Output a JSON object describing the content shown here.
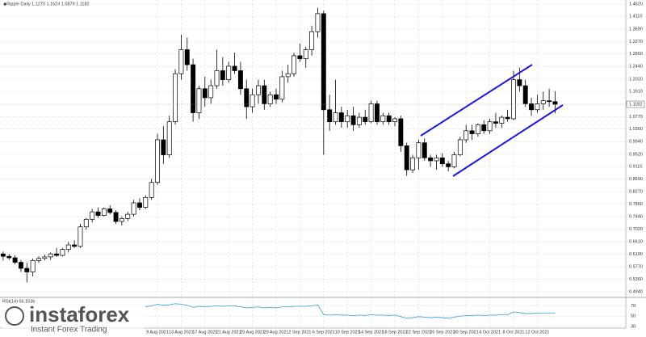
{
  "chart_data": {
    "type": "candlestick",
    "header": "◆Ripple Daily  1.1270  1.1624  1.0879  1.1182",
    "brand": "instaforex",
    "brand_tagline": "Instant Forex Trading",
    "categories": [
      null,
      null,
      null,
      null,
      null,
      null,
      null,
      null,
      null,
      null,
      null,
      null,
      null,
      null,
      null,
      null,
      null,
      null,
      null,
      null,
      null,
      null,
      null,
      null,
      null,
      null,
      "9 Aug 2021",
      null,
      null,
      null,
      "13 Aug 2021",
      null,
      null,
      null,
      "17 Aug 2021",
      null,
      null,
      null,
      "21 Aug 2021",
      null,
      null,
      null,
      "25 Aug 2021",
      null,
      null,
      null,
      "29 Aug 2021",
      null,
      null,
      null,
      "2 Sep 2021",
      null,
      null,
      null,
      "6 Sep 2021",
      null,
      null,
      null,
      "10 Sep 2021",
      null,
      null,
      null,
      "14 Sep 2021",
      null,
      null,
      null,
      "18 Sep 2021",
      null,
      null,
      null,
      "22 Sep 2021",
      null,
      null,
      null,
      "26 Sep 2021",
      null,
      null,
      null,
      "30 Sep 2021",
      null,
      null,
      null,
      "4 Oct 2021",
      null,
      null,
      null,
      "8 Oct 2021",
      null,
      null,
      null,
      "12 Oct 2021",
      null,
      null,
      null
    ],
    "open": [
      0.62,
      0.612,
      0.607,
      0.592,
      0.572,
      0.56,
      0.598,
      0.605,
      0.61,
      0.62,
      0.615,
      0.635,
      0.65,
      0.645,
      0.71,
      0.735,
      0.76,
      0.748,
      0.77,
      0.758,
      0.728,
      0.738,
      0.752,
      0.79,
      0.775,
      0.808,
      0.858,
      1.0,
      0.95,
      1.06,
      1.22,
      1.3,
      1.25,
      1.09,
      1.17,
      1.14,
      1.18,
      1.23,
      1.2,
      1.245,
      1.23,
      1.17,
      1.11,
      1.15,
      1.18,
      1.12,
      1.15,
      1.135,
      1.21,
      1.22,
      1.28,
      1.27,
      1.3,
      1.36,
      1.42,
      1.1,
      1.06,
      1.09,
      1.06,
      1.08,
      1.05,
      1.075,
      1.06,
      1.12,
      1.06,
      1.08,
      1.06,
      1.07,
      0.98,
      0.9,
      0.94,
      0.99,
      0.94,
      0.93,
      0.94,
      0.92,
      0.91,
      0.95,
      1.0,
      1.03,
      1.02,
      1.05,
      1.03,
      1.06,
      1.055,
      1.075,
      1.07,
      1.2,
      1.18,
      1.12,
      1.1,
      1.12,
      1.13,
      1.127
    ],
    "high": [
      0.628,
      0.62,
      0.615,
      0.6,
      0.59,
      0.605,
      0.612,
      0.618,
      0.625,
      0.64,
      0.64,
      0.66,
      0.665,
      0.72,
      0.74,
      0.77,
      0.775,
      0.775,
      0.782,
      0.765,
      0.745,
      0.76,
      0.8,
      0.805,
      0.815,
      0.87,
      1.02,
      1.045,
      1.08,
      1.235,
      1.35,
      1.34,
      1.27,
      1.18,
      1.21,
      1.2,
      1.3,
      1.275,
      1.26,
      1.29,
      1.26,
      1.2,
      1.17,
      1.2,
      1.2,
      1.16,
      1.17,
      1.23,
      1.25,
      1.29,
      1.32,
      1.31,
      1.38,
      1.44,
      1.43,
      1.15,
      1.2,
      1.11,
      1.1,
      1.11,
      1.09,
      1.1,
      1.13,
      1.13,
      1.09,
      1.09,
      1.075,
      1.08,
      0.99,
      0.95,
      1.0,
      1.005,
      0.95,
      0.95,
      0.955,
      0.93,
      0.96,
      1.01,
      1.05,
      1.05,
      1.055,
      1.065,
      1.07,
      1.09,
      1.08,
      1.1,
      1.23,
      1.24,
      1.2,
      1.14,
      1.15,
      1.16,
      1.17,
      1.162
    ],
    "low": [
      0.598,
      0.6,
      0.585,
      0.56,
      0.525,
      0.545,
      0.59,
      0.598,
      0.6,
      0.61,
      0.612,
      0.625,
      0.64,
      0.64,
      0.7,
      0.725,
      0.74,
      0.745,
      0.752,
      0.72,
      0.715,
      0.73,
      0.745,
      0.765,
      0.77,
      0.8,
      0.85,
      0.92,
      0.94,
      1.05,
      1.2,
      1.23,
      1.06,
      1.07,
      1.11,
      1.12,
      1.17,
      1.18,
      1.19,
      1.22,
      1.15,
      1.07,
      1.09,
      1.12,
      1.1,
      1.11,
      1.12,
      1.125,
      1.19,
      1.21,
      1.26,
      1.24,
      1.28,
      1.34,
      0.95,
      1.03,
      1.05,
      1.04,
      1.04,
      1.03,
      1.04,
      1.05,
      1.055,
      1.05,
      1.05,
      1.05,
      1.045,
      0.96,
      0.88,
      0.89,
      0.9,
      0.93,
      0.91,
      0.9,
      0.91,
      0.895,
      0.905,
      0.945,
      0.99,
      1.0,
      1.01,
      1.02,
      1.02,
      1.04,
      1.04,
      1.06,
      1.065,
      1.16,
      1.11,
      1.08,
      1.09,
      1.1,
      1.11,
      1.088
    ],
    "close": [
      0.612,
      0.607,
      0.592,
      0.572,
      0.56,
      0.598,
      0.605,
      0.61,
      0.62,
      0.615,
      0.635,
      0.65,
      0.645,
      0.71,
      0.735,
      0.76,
      0.748,
      0.77,
      0.758,
      0.728,
      0.738,
      0.752,
      0.79,
      0.775,
      0.808,
      0.858,
      1.0,
      0.95,
      1.06,
      1.22,
      1.3,
      1.25,
      1.09,
      1.17,
      1.14,
      1.18,
      1.23,
      1.2,
      1.245,
      1.23,
      1.17,
      1.11,
      1.15,
      1.18,
      1.12,
      1.15,
      1.135,
      1.21,
      1.22,
      1.28,
      1.27,
      1.3,
      1.36,
      1.42,
      1.1,
      1.06,
      1.09,
      1.06,
      1.08,
      1.05,
      1.075,
      1.06,
      1.12,
      1.06,
      1.08,
      1.06,
      1.07,
      0.98,
      0.9,
      0.94,
      0.99,
      0.94,
      0.93,
      0.94,
      0.92,
      0.91,
      0.95,
      1.0,
      1.03,
      1.02,
      1.05,
      1.03,
      1.06,
      1.055,
      1.075,
      1.07,
      1.2,
      1.18,
      1.12,
      1.1,
      1.12,
      1.13,
      1.127,
      1.118
    ],
    "last_price": 1.1182,
    "ylim": [
      0.494,
      1.452
    ],
    "yticks": [
      {
        "value": 0.494,
        "label": "0.4940"
      },
      {
        "value": 0.536,
        "label": "0.5360"
      },
      {
        "value": 0.577,
        "label": "0.5770"
      },
      {
        "value": 0.619,
        "label": "0.6190"
      },
      {
        "value": 0.661,
        "label": "0.6610"
      },
      {
        "value": 0.702,
        "label": "0.7020"
      },
      {
        "value": 0.744,
        "label": "0.7440"
      },
      {
        "value": 0.786,
        "label": "0.7860"
      },
      {
        "value": 0.827,
        "label": "0.8270"
      },
      {
        "value": 0.869,
        "label": "0.8690"
      },
      {
        "value": 0.911,
        "label": "0.9110"
      },
      {
        "value": 0.952,
        "label": "0.9520"
      },
      {
        "value": 0.994,
        "label": "0.9940"
      },
      {
        "value": 1.036,
        "label": "1.0360"
      },
      {
        "value": 1.077,
        "label": "1.0770"
      },
      {
        "value": 1.161,
        "label": "1.1610"
      },
      {
        "value": 1.202,
        "label": "1.2020"
      },
      {
        "value": 1.244,
        "label": "1.2440"
      },
      {
        "value": 1.286,
        "label": "1.2860"
      },
      {
        "value": 1.327,
        "label": "1.3270"
      },
      {
        "value": 1.369,
        "label": "1.3690"
      },
      {
        "value": 1.411,
        "label": "1.4110"
      },
      {
        "value": 1.452,
        "label": "1.4520"
      }
    ],
    "grid": true,
    "up_color": "#ffffff",
    "down_color": "#000000",
    "rsi": {
      "label": "RSI(14) 56.1536",
      "color": "#4aa8e0",
      "ylim": [
        30,
        80
      ],
      "yticks": [
        70,
        50,
        30
      ],
      "values": [
        null,
        null,
        null,
        null,
        null,
        null,
        null,
        null,
        null,
        null,
        null,
        null,
        null,
        null,
        null,
        null,
        null,
        null,
        null,
        null,
        null,
        null,
        null,
        null,
        68,
        70,
        73,
        71,
        72,
        74,
        73,
        71,
        67,
        69,
        68,
        69,
        70,
        69,
        70,
        70,
        68,
        66,
        67,
        68,
        66,
        67,
        66,
        68,
        68,
        69,
        69,
        69,
        70,
        72,
        53,
        52,
        53,
        52,
        52,
        51,
        52,
        51,
        53,
        52,
        52,
        51,
        52,
        49,
        46,
        47,
        49,
        48,
        47,
        48,
        47,
        46,
        48,
        50,
        51,
        51,
        52,
        51,
        52,
        52,
        53,
        53,
        58,
        57,
        55,
        55,
        56,
        56,
        56,
        56
      ]
    }
  }
}
